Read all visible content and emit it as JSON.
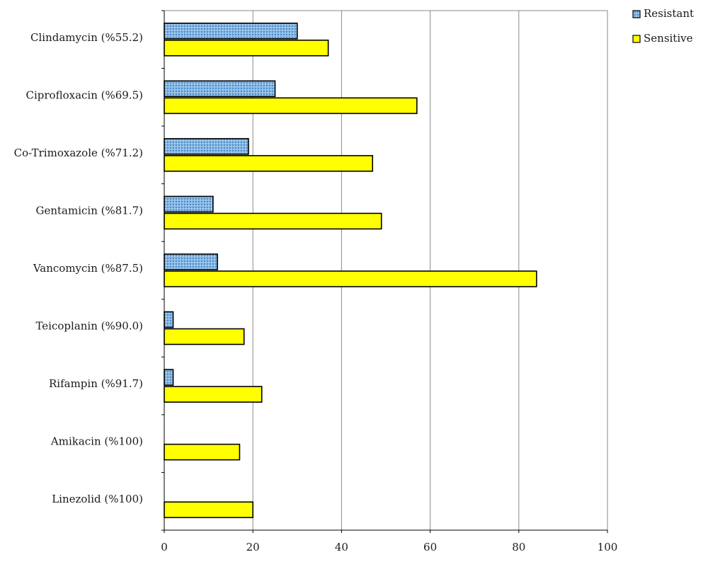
{
  "chart_data": {
    "type": "bar",
    "orientation": "horizontal",
    "title": "",
    "xlabel": "",
    "ylabel": "",
    "xlim": [
      0,
      100
    ],
    "xticks": [
      0,
      20,
      40,
      60,
      80,
      100
    ],
    "grid": "vertical major gridlines",
    "legend_position": "top-right",
    "categories": [
      "Clindamycin (%55.2)",
      "Ciprofloxacin (%69.5)",
      "Co-Trimoxazole (%71.2)",
      "Gentamicin (%81.7)",
      "Vancomycin (%87.5)",
      "Teicoplanin (%90.0)",
      "Rifampin (%91.7)",
      "Amikacin (%100)",
      "Linezolid (%100)"
    ],
    "series": [
      {
        "name": "Resistant",
        "color": "#7fb2e0",
        "pattern": "dotted",
        "values": [
          30,
          25,
          19,
          11,
          12,
          2,
          2,
          0,
          0
        ]
      },
      {
        "name": "Sensitive",
        "color": "#ffff00",
        "pattern": "solid",
        "values": [
          37,
          57,
          47,
          49,
          84,
          18,
          22,
          17,
          20
        ]
      }
    ]
  }
}
